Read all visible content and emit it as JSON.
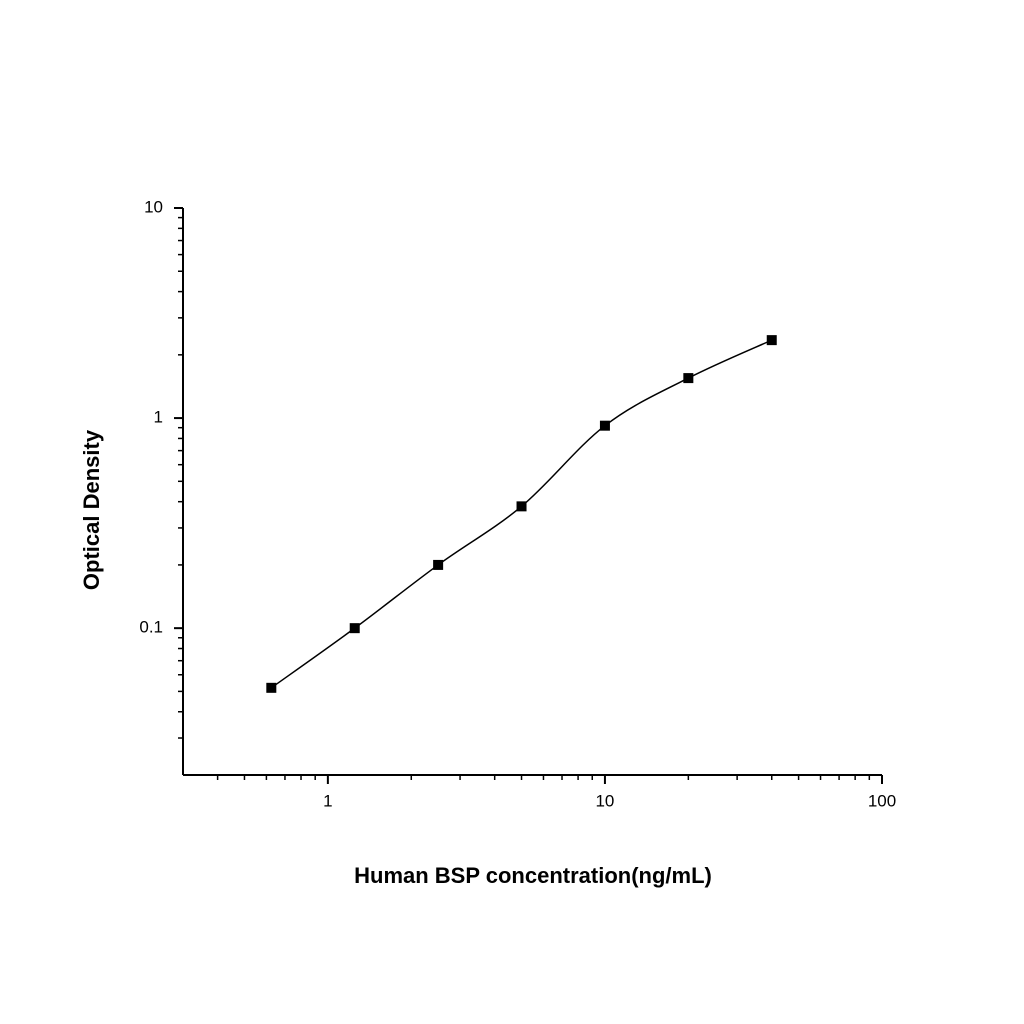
{
  "chart_data": {
    "type": "scatter",
    "x_label": "Human BSP concentration(ng/mL)",
    "y_label": "Optical Density",
    "x": [
      0.625,
      1.25,
      2.5,
      5,
      10,
      20,
      40
    ],
    "series": [
      {
        "values": [
          0.052,
          0.1,
          0.2,
          0.38,
          0.92,
          1.55,
          2.35
        ],
        "color": "#000000"
      }
    ],
    "xlim": [
      0.3,
      100
    ],
    "ylim": [
      0.02,
      10
    ],
    "xticks": [
      1,
      10,
      100
    ],
    "yticks": [
      0.1,
      1,
      10
    ],
    "xminor_ticks": [
      0.4,
      0.5,
      0.6,
      0.7,
      0.8,
      0.9,
      2,
      3,
      4,
      5,
      6,
      7,
      8,
      9,
      20,
      30,
      40,
      50,
      60,
      70,
      80,
      90
    ],
    "yminor_ticks": [
      0.03,
      0.04,
      0.05,
      0.06,
      0.07,
      0.08,
      0.09,
      0.2,
      0.3,
      0.4,
      0.5,
      0.6,
      0.7,
      0.8,
      0.9,
      2,
      3,
      4,
      5,
      6,
      7,
      8,
      9
    ],
    "log_x": true,
    "log_y": true,
    "fit_curve": true
  }
}
